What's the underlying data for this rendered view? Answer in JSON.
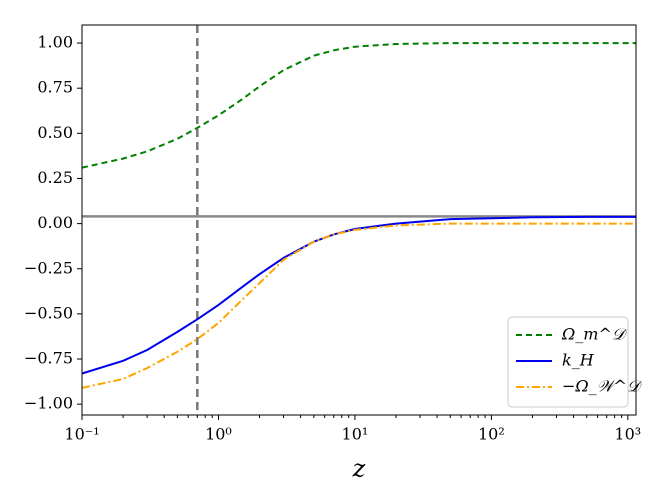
{
  "chart_data": {
    "type": "line",
    "xlabel": "z",
    "xscale": "log",
    "x": [
      0.1,
      0.2,
      0.3,
      0.5,
      0.7,
      1,
      1.5,
      2,
      3,
      5,
      7,
      10,
      20,
      50,
      100,
      200,
      500,
      1000,
      1148
    ],
    "series": [
      {
        "name": "Ω_m^𝒟",
        "color": "#008000",
        "dash": "dashed",
        "values": [
          0.31,
          0.36,
          0.4,
          0.47,
          0.53,
          0.6,
          0.69,
          0.76,
          0.85,
          0.93,
          0.96,
          0.98,
          0.995,
          1.0,
          1.0,
          1.0,
          1.0,
          1.0,
          1.0
        ]
      },
      {
        "name": "k_H",
        "color": "#0000ee",
        "dash": "solid",
        "values": [
          -0.83,
          -0.76,
          -0.7,
          -0.6,
          -0.53,
          -0.45,
          -0.35,
          -0.28,
          -0.19,
          -0.1,
          -0.06,
          -0.03,
          0.0,
          0.025,
          0.03,
          0.035,
          0.037,
          0.037,
          0.037
        ]
      },
      {
        "name": "−Ω_𝒲^𝒟",
        "color": "#ffa500",
        "dash": "dashdot",
        "values": [
          -0.91,
          -0.86,
          -0.8,
          -0.71,
          -0.64,
          -0.55,
          -0.42,
          -0.33,
          -0.2,
          -0.1,
          -0.06,
          -0.035,
          -0.01,
          0.0,
          0.0,
          0.0,
          0.0,
          0.0,
          0.0
        ]
      }
    ],
    "reference_x": 0.7,
    "reference_y": 0.04,
    "xlim": [
      0.1,
      1148
    ],
    "ylim": [
      -1.06,
      1.1
    ],
    "xticks": [
      {
        "value": 0.1,
        "label": "10⁻¹"
      },
      {
        "value": 1,
        "label": "10⁰"
      },
      {
        "value": 10,
        "label": "10¹"
      },
      {
        "value": 100,
        "label": "10²"
      },
      {
        "value": 1000,
        "label": "10³"
      }
    ],
    "yticks": [
      {
        "value": -1,
        "label": "−1.00"
      },
      {
        "value": -0.75,
        "label": "−0.75"
      },
      {
        "value": -0.5,
        "label": "−0.50"
      },
      {
        "value": -0.25,
        "label": "−0.25"
      },
      {
        "value": 0,
        "label": "0.00"
      },
      {
        "value": 0.25,
        "label": "0.25"
      },
      {
        "value": 0.5,
        "label": "0.50"
      },
      {
        "value": 0.75,
        "label": "0.75"
      },
      {
        "value": 1,
        "label": "1.00"
      }
    ],
    "legend": "lower right"
  }
}
